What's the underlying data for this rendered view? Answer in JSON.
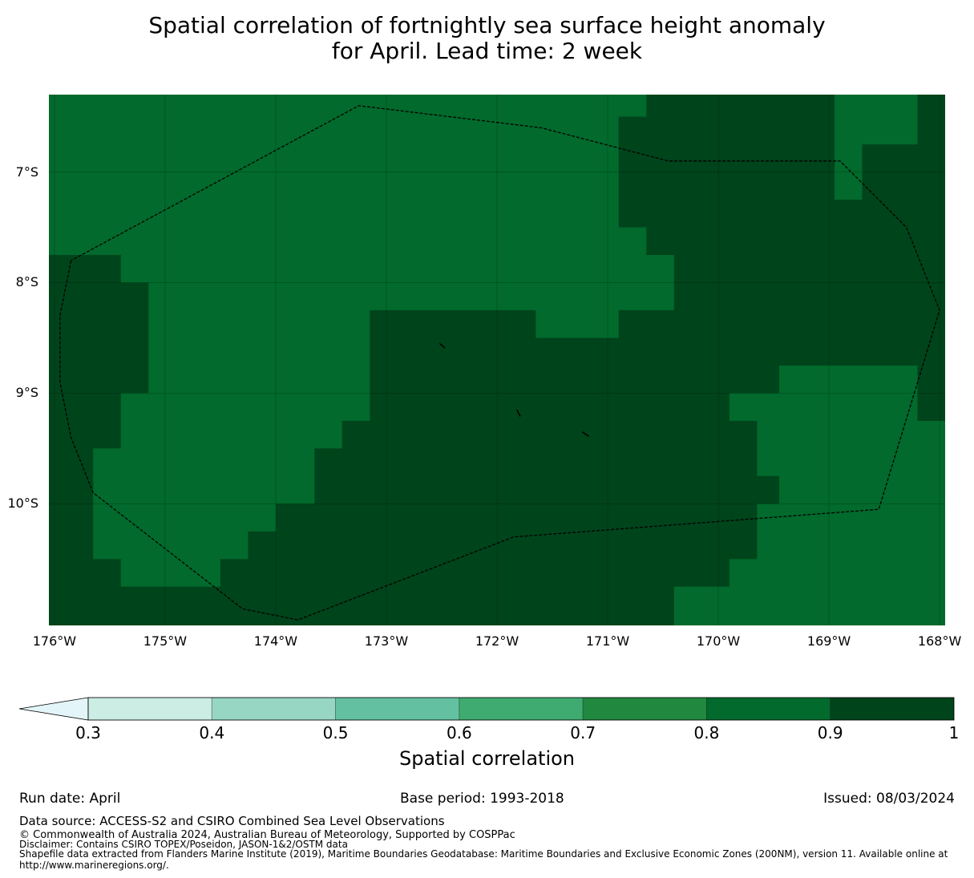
{
  "title_line1": "Spatial correlation of fortnightly sea surface height anomaly",
  "title_line2": "for April. Lead time: 2 week",
  "map": {
    "lon_range": [
      -176.05,
      -167.95
    ],
    "lat_range": [
      -11.1,
      -6.3
    ],
    "lat_ticks": [
      {
        "value": -7,
        "label": "7°S"
      },
      {
        "value": -8,
        "label": "8°S"
      },
      {
        "value": -9,
        "label": "9°S"
      },
      {
        "value": -10,
        "label": "10°S"
      }
    ],
    "lon_ticks": [
      {
        "value": -176,
        "label": "176°W"
      },
      {
        "value": -175,
        "label": "175°W"
      },
      {
        "value": -174,
        "label": "174°W"
      },
      {
        "value": -173,
        "label": "173°W"
      },
      {
        "value": -172,
        "label": "172°W"
      },
      {
        "value": -171,
        "label": "171°W"
      },
      {
        "value": -170,
        "label": "170°W"
      },
      {
        "value": -169,
        "label": "169°W"
      },
      {
        "value": -168,
        "label": "168°W"
      }
    ],
    "grid_on": true,
    "field_class_range": "0.8-0.9 and 0.9-1",
    "high_correlation_regions": [
      [
        [
          -176.05,
          -7.75
        ],
        [
          -175.4,
          -7.75
        ],
        [
          -175.4,
          -8.0
        ],
        [
          -175.15,
          -8.0
        ],
        [
          -175.15,
          -9.0
        ],
        [
          -175.4,
          -9.0
        ],
        [
          -175.4,
          -9.5
        ],
        [
          -175.65,
          -9.5
        ],
        [
          -175.65,
          -10.5
        ],
        [
          -175.4,
          -10.5
        ],
        [
          -175.4,
          -10.75
        ],
        [
          -174.5,
          -10.75
        ],
        [
          -174.5,
          -10.5
        ],
        [
          -174.25,
          -10.5
        ],
        [
          -174.25,
          -10.25
        ],
        [
          -174.0,
          -10.25
        ],
        [
          -174.0,
          -10.0
        ],
        [
          -173.65,
          -10.0
        ],
        [
          -173.65,
          -9.5
        ],
        [
          -173.4,
          -9.5
        ],
        [
          -173.4,
          -9.25
        ],
        [
          -173.15,
          -9.25
        ],
        [
          -173.15,
          -8.25
        ],
        [
          -171.65,
          -8.25
        ],
        [
          -171.65,
          -8.5
        ],
        [
          -170.9,
          -8.5
        ],
        [
          -170.9,
          -8.25
        ],
        [
          -170.4,
          -8.25
        ],
        [
          -170.4,
          -7.75
        ],
        [
          -170.65,
          -7.75
        ],
        [
          -170.65,
          -7.5
        ],
        [
          -170.9,
          -7.5
        ],
        [
          -170.9,
          -6.5
        ],
        [
          -170.65,
          -6.5
        ],
        [
          -170.65,
          -6.25
        ],
        [
          -168.95,
          -6.25
        ],
        [
          -168.95,
          -7.25
        ],
        [
          -168.7,
          -7.25
        ],
        [
          -168.7,
          -6.75
        ],
        [
          -168.2,
          -6.75
        ],
        [
          -168.2,
          -6.25
        ],
        [
          -167.95,
          -6.25
        ],
        [
          -167.95,
          -9.25
        ],
        [
          -168.2,
          -9.25
        ],
        [
          -168.2,
          -8.75
        ],
        [
          -169.45,
          -8.75
        ],
        [
          -169.45,
          -9.0
        ],
        [
          -169.9,
          -9.0
        ],
        [
          -169.9,
          -9.25
        ],
        [
          -169.65,
          -9.25
        ],
        [
          -169.65,
          -9.75
        ],
        [
          -169.45,
          -9.75
        ],
        [
          -169.45,
          -10.0
        ],
        [
          -169.65,
          -10.0
        ],
        [
          -169.65,
          -10.5
        ],
        [
          -169.9,
          -10.5
        ],
        [
          -169.9,
          -10.75
        ],
        [
          -170.4,
          -10.75
        ],
        [
          -170.4,
          -11.15
        ],
        [
          -176.05,
          -11.15
        ]
      ],
      [
        [
          -170.0,
          -6.25
        ],
        [
          -169.15,
          -6.25
        ],
        [
          -169.15,
          -6.5
        ],
        [
          -170.0,
          -6.5
        ],
        [
          -170.0,
          -6.75
        ],
        [
          -170.9,
          -6.75
        ],
        [
          -170.9,
          -6.5
        ],
        [
          -170.0,
          -6.5
        ]
      ]
    ],
    "eez_boundary": [
      [
        -175.85,
        -7.8
      ],
      [
        -175.95,
        -8.3
      ],
      [
        -175.95,
        -8.9
      ],
      [
        -175.85,
        -9.4
      ],
      [
        -175.65,
        -9.9
      ],
      [
        -174.3,
        -10.95
      ],
      [
        -173.8,
        -11.05
      ],
      [
        -171.85,
        -10.3
      ],
      [
        -168.55,
        -10.05
      ],
      [
        -168.0,
        -8.25
      ],
      [
        -168.3,
        -7.5
      ],
      [
        -168.9,
        -6.9
      ],
      [
        -170.45,
        -6.9
      ],
      [
        -171.6,
        -6.6
      ],
      [
        -173.25,
        -6.4
      ],
      [
        -175.85,
        -7.8
      ]
    ],
    "islands": [
      [
        [
          -172.52,
          -8.55
        ],
        [
          -172.47,
          -8.59
        ]
      ],
      [
        [
          -171.82,
          -9.15
        ],
        [
          -171.79,
          -9.21
        ]
      ],
      [
        [
          -171.23,
          -9.35
        ],
        [
          -171.17,
          -9.39
        ]
      ]
    ]
  },
  "colorbar": {
    "label": "Spatial correlation",
    "extend": "min",
    "colors": [
      "#e4f5f9",
      "#cbede3",
      "#97d6c3",
      "#63c1a1",
      "#3fab70",
      "#21883f",
      "#016a2c",
      "#00441b"
    ],
    "ticks": [
      "0.3",
      "0.4",
      "0.5",
      "0.6",
      "0.7",
      "0.8",
      "0.9",
      "1"
    ]
  },
  "footer": {
    "run_date": "Run date: April",
    "base_period": "Base period: 1993-2018",
    "issued": "Issued: 08/03/2024",
    "data_source": "Data source: ACCESS-S2 and CSIRO Combined Sea Level Observations",
    "copyright": "© Commonwealth of Australia 2024, Australian Bureau of Meteorology, Supported by COSPPac",
    "disclaimer": "Disclaimer: Contains CSIRO TOPEX/Poseidon, JASON-1&2/OSTM data",
    "shapefile_line1": "Shapefile data extracted from Flanders Marine Institute (2019), Maritime Boundaries Geodatabase: Maritime Boundaries and Exclusive Economic Zones (200NM), version 11. Available online at",
    "shapefile_line2": "http://www.marineregions.org/."
  }
}
